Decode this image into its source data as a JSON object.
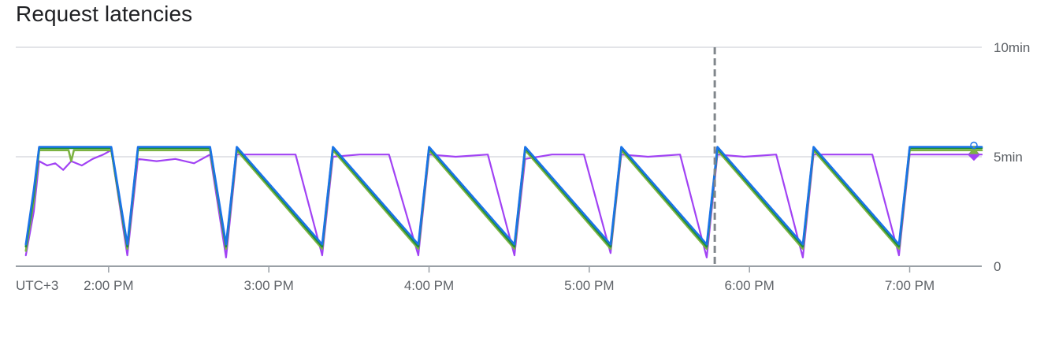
{
  "title": "Request latencies",
  "chart_data": {
    "type": "line",
    "title": "Request latencies",
    "xlabel": "",
    "ylabel": "",
    "timezone_label": "UTC+3",
    "x_range": [
      "1:27 PM",
      "7:27 PM"
    ],
    "x_ticks": [
      "2:00 PM",
      "3:00 PM",
      "4:00 PM",
      "5:00 PM",
      "6:00 PM",
      "7:00 PM"
    ],
    "y_unit": "min",
    "ylim": [
      0,
      10
    ],
    "y_ticks": [
      {
        "value": 0,
        "label": "0"
      },
      {
        "value": 5,
        "label": "5min"
      },
      {
        "value": 10,
        "label": "10min"
      }
    ],
    "grid": true,
    "cursor_time": "5:47 PM",
    "series": [
      {
        "color": "#a142f4",
        "end_marker": "diamond",
        "values": [
          [
            "1:29 PM",
            0.5
          ],
          [
            "1:32 PM",
            2.5
          ],
          [
            "1:34 PM",
            4.8
          ],
          [
            "1:37 PM",
            4.6
          ],
          [
            "1:40 PM",
            4.7
          ],
          [
            "1:43 PM",
            4.4
          ],
          [
            "1:46 PM",
            4.8
          ],
          [
            "1:50 PM",
            4.6
          ],
          [
            "1:54 PM",
            4.9
          ],
          [
            "1:58 PM",
            5.1
          ],
          [
            "2:01 PM",
            5.3
          ],
          [
            "2:07 PM",
            0.5
          ],
          [
            "2:11 PM",
            4.9
          ],
          [
            "2:18 PM",
            4.8
          ],
          [
            "2:25 PM",
            4.9
          ],
          [
            "2:32 PM",
            4.7
          ],
          [
            "2:38 PM",
            5.1
          ],
          [
            "2:44 PM",
            0.4
          ],
          [
            "2:48 PM",
            5.1
          ],
          [
            "3:00 PM",
            5.1
          ],
          [
            "3:10 PM",
            5.1
          ],
          [
            "3:20 PM",
            0.5
          ],
          [
            "3:24 PM",
            5.0
          ],
          [
            "3:34 PM",
            5.1
          ],
          [
            "3:45 PM",
            5.1
          ],
          [
            "3:56 PM",
            0.5
          ],
          [
            "4:00 PM",
            5.1
          ],
          [
            "4:10 PM",
            5.0
          ],
          [
            "4:22 PM",
            5.1
          ],
          [
            "4:32 PM",
            0.5
          ],
          [
            "4:36 PM",
            4.9
          ],
          [
            "4:46 PM",
            5.1
          ],
          [
            "4:58 PM",
            5.1
          ],
          [
            "5:08 PM",
            0.6
          ],
          [
            "5:12 PM",
            5.1
          ],
          [
            "5:22 PM",
            5.0
          ],
          [
            "5:34 PM",
            5.1
          ],
          [
            "5:44 PM",
            0.4
          ],
          [
            "5:48 PM",
            5.1
          ],
          [
            "5:58 PM",
            5.0
          ],
          [
            "6:10 PM",
            5.1
          ],
          [
            "6:20 PM",
            0.4
          ],
          [
            "6:24 PM",
            5.1
          ],
          [
            "6:34 PM",
            5.1
          ],
          [
            "6:46 PM",
            5.1
          ],
          [
            "6:56 PM",
            0.5
          ],
          [
            "7:00 PM",
            5.1
          ],
          [
            "7:10 PM",
            5.1
          ],
          [
            "7:20 PM",
            5.1
          ],
          [
            "7:27 PM",
            5.1
          ]
        ]
      },
      {
        "color": "#7cb342",
        "end_marker": "triangle",
        "values": [
          [
            "1:29 PM",
            0.7
          ],
          [
            "1:32 PM",
            3.0
          ],
          [
            "1:34 PM",
            5.3
          ],
          [
            "1:45 PM",
            5.3
          ],
          [
            "1:46 PM",
            4.8
          ],
          [
            "1:47 PM",
            5.3
          ],
          [
            "2:01 PM",
            5.3
          ],
          [
            "2:07 PM",
            0.8
          ],
          [
            "2:11 PM",
            5.3
          ],
          [
            "2:38 PM",
            5.3
          ],
          [
            "2:44 PM",
            0.8
          ],
          [
            "2:48 PM",
            5.3
          ],
          [
            "3:20 PM",
            0.8
          ],
          [
            "3:24 PM",
            5.3
          ],
          [
            "3:56 PM",
            0.8
          ],
          [
            "4:00 PM",
            5.3
          ],
          [
            "4:32 PM",
            0.8
          ],
          [
            "4:36 PM",
            5.3
          ],
          [
            "5:08 PM",
            0.8
          ],
          [
            "5:12 PM",
            5.3
          ],
          [
            "5:44 PM",
            0.8
          ],
          [
            "5:48 PM",
            5.3
          ],
          [
            "6:20 PM",
            0.8
          ],
          [
            "6:24 PM",
            5.3
          ],
          [
            "6:56 PM",
            0.8
          ],
          [
            "7:00 PM",
            5.3
          ],
          [
            "7:27 PM",
            5.3
          ]
        ]
      },
      {
        "color": "#1e8e3e",
        "end_marker": "none",
        "values": [
          [
            "1:29 PM",
            0.9
          ],
          [
            "1:32 PM",
            3.3
          ],
          [
            "1:34 PM",
            5.4
          ],
          [
            "2:01 PM",
            5.4
          ],
          [
            "2:07 PM",
            0.9
          ],
          [
            "2:11 PM",
            5.4
          ],
          [
            "2:38 PM",
            5.4
          ],
          [
            "2:44 PM",
            0.9
          ],
          [
            "2:48 PM",
            5.4
          ],
          [
            "3:20 PM",
            0.9
          ],
          [
            "3:24 PM",
            5.4
          ],
          [
            "3:56 PM",
            0.9
          ],
          [
            "4:00 PM",
            5.4
          ],
          [
            "4:32 PM",
            0.9
          ],
          [
            "4:36 PM",
            5.4
          ],
          [
            "5:08 PM",
            0.9
          ],
          [
            "5:12 PM",
            5.4
          ],
          [
            "5:44 PM",
            0.9
          ],
          [
            "5:48 PM",
            5.4
          ],
          [
            "6:20 PM",
            0.9
          ],
          [
            "6:24 PM",
            5.4
          ],
          [
            "6:56 PM",
            0.9
          ],
          [
            "7:00 PM",
            5.4
          ],
          [
            "7:27 PM",
            5.4
          ]
        ]
      },
      {
        "color": "#1a73e8",
        "end_marker": "circle",
        "values": [
          [
            "1:29 PM",
            1.0
          ],
          [
            "1:32 PM",
            3.5
          ],
          [
            "1:34 PM",
            5.45
          ],
          [
            "2:01 PM",
            5.45
          ],
          [
            "2:07 PM",
            1.0
          ],
          [
            "2:11 PM",
            5.45
          ],
          [
            "2:38 PM",
            5.45
          ],
          [
            "2:44 PM",
            1.0
          ],
          [
            "2:48 PM",
            5.45
          ],
          [
            "3:20 PM",
            1.0
          ],
          [
            "3:24 PM",
            5.45
          ],
          [
            "3:56 PM",
            1.0
          ],
          [
            "4:00 PM",
            5.45
          ],
          [
            "4:32 PM",
            1.0
          ],
          [
            "4:36 PM",
            5.45
          ],
          [
            "5:08 PM",
            1.0
          ],
          [
            "5:12 PM",
            5.45
          ],
          [
            "5:44 PM",
            1.0
          ],
          [
            "5:48 PM",
            5.45
          ],
          [
            "6:20 PM",
            1.0
          ],
          [
            "6:24 PM",
            5.45
          ],
          [
            "6:56 PM",
            1.0
          ],
          [
            "7:00 PM",
            5.45
          ],
          [
            "7:27 PM",
            5.45
          ]
        ]
      }
    ]
  }
}
